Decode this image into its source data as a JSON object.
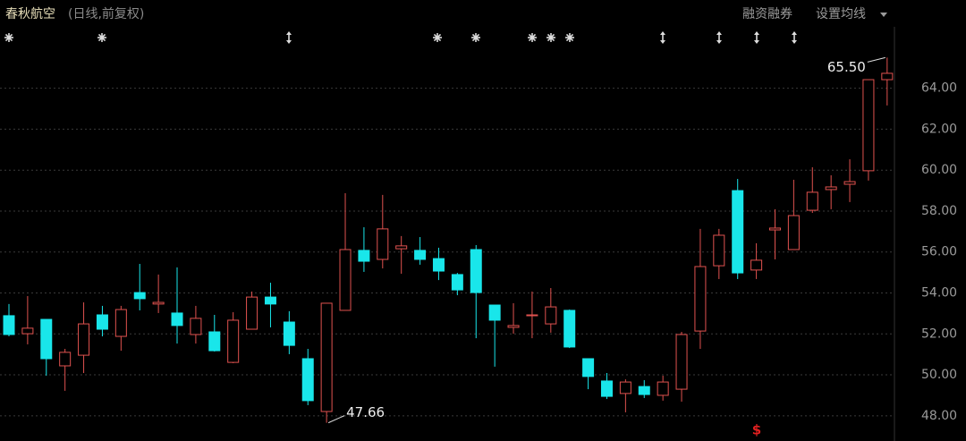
{
  "header": {
    "stock_name": "春秋航空",
    "mode": "(日线,前复权)",
    "margin_button": "融资融券",
    "ma_button": "设置均线"
  },
  "chart_data": {
    "type": "candlestick",
    "open": [
      52.89,
      52.01,
      52.71,
      50.44,
      50.96,
      52.93,
      51.88,
      54.02,
      53.46,
      53.02,
      51.97,
      52.1,
      50.61,
      52.23,
      53.8,
      52.58,
      50.79,
      48.21,
      53.15,
      56.08,
      55.64,
      56.16,
      56.08,
      55.68,
      54.9,
      56.12,
      53.41,
      52.32,
      52.89,
      52.49,
      53.15,
      50.79,
      49.7,
      49.09,
      49.43,
      49.0,
      49.3,
      52.14,
      55.33,
      59.0,
      55.12,
      57.08,
      56.12,
      58.04,
      59.05,
      59.31,
      59.97,
      64.42
    ],
    "high": [
      53.46,
      53.85,
      52.71,
      51.27,
      53.54,
      53.37,
      53.37,
      55.42,
      54.9,
      55.25,
      53.37,
      52.93,
      53.06,
      54.07,
      54.5,
      53.11,
      51.27,
      53.5,
      58.87,
      57.21,
      58.79,
      56.78,
      56.73,
      56.21,
      54.98,
      56.34,
      53.41,
      53.5,
      54.07,
      54.24,
      53.19,
      50.79,
      50.09,
      49.78,
      49.74,
      49.96,
      52.1,
      57.13,
      57.13,
      59.57,
      56.43,
      58.09,
      59.53,
      60.14,
      59.75,
      60.53,
      64.42,
      65.5
    ],
    "low": [
      51.88,
      51.49,
      49.96,
      49.22,
      50.09,
      51.88,
      51.18,
      53.15,
      53.02,
      51.53,
      51.53,
      51.14,
      50.57,
      52.23,
      52.32,
      51.01,
      48.52,
      47.66,
      53.15,
      55.03,
      55.2,
      54.94,
      55.38,
      54.63,
      53.89,
      51.79,
      50.4,
      52.01,
      51.79,
      52.06,
      51.31,
      49.3,
      48.82,
      48.17,
      48.87,
      48.74,
      48.69,
      51.27,
      54.68,
      54.68,
      54.68,
      55.64,
      56.12,
      57.91,
      58.09,
      58.44,
      59.49,
      63.16
    ],
    "close": [
      51.97,
      52.28,
      50.79,
      51.1,
      52.49,
      52.23,
      53.19,
      53.72,
      53.54,
      52.41,
      52.76,
      51.18,
      52.67,
      53.8,
      53.46,
      51.44,
      48.74,
      53.5,
      56.12,
      55.55,
      57.13,
      56.3,
      55.64,
      55.07,
      54.15,
      54.02,
      52.67,
      52.41,
      52.93,
      53.32,
      51.36,
      49.92,
      48.95,
      49.65,
      49.04,
      49.65,
      51.97,
      55.29,
      56.82,
      54.98,
      55.6,
      57.17,
      57.78,
      58.92,
      59.18,
      59.44,
      64.42,
      64.73
    ],
    "up_color": "#e0524f",
    "down_color": "#19e6ea",
    "ylim": [
      46.9,
      67.0
    ],
    "yticks": [
      {
        "value": 48,
        "label": "48.00"
      },
      {
        "value": 50,
        "label": "50.00"
      },
      {
        "value": 52,
        "label": "52.00"
      },
      {
        "value": 54,
        "label": "54.00"
      },
      {
        "value": 56,
        "label": "56.00"
      },
      {
        "value": 58,
        "label": "58.00"
      },
      {
        "value": 60,
        "label": "60.00"
      },
      {
        "value": 62,
        "label": "62.00"
      },
      {
        "value": 64,
        "label": "64.00"
      }
    ],
    "grid": true,
    "max_label": "65.50",
    "min_label": "47.66",
    "event_marker": "$"
  }
}
